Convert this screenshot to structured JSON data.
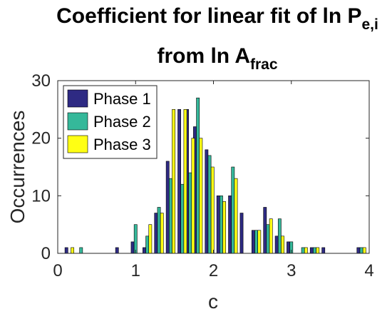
{
  "chart_data": {
    "type": "bar",
    "title_line1": "Coefficient for linear fit of ln P",
    "title_line1_sub": "e,i",
    "title_line2": "from ln A",
    "title_line2_sub": "frac",
    "xlabel": "c",
    "ylabel": "Occurrences",
    "xlim": [
      0,
      4
    ],
    "ylim": [
      0,
      30
    ],
    "xticks": [
      0,
      1,
      2,
      3,
      4
    ],
    "yticks": [
      0,
      10,
      20,
      30
    ],
    "grid": false,
    "legend_position": "top-left",
    "x": [
      0.15,
      0.3,
      0.8,
      1.0,
      1.15,
      1.3,
      1.45,
      1.6,
      1.7,
      1.8,
      1.95,
      2.1,
      2.25,
      2.4,
      2.55,
      2.7,
      2.85,
      3.0,
      3.15,
      3.3,
      3.45,
      3.9
    ],
    "series": [
      {
        "name": "Phase 1",
        "color": "#2e2a83",
        "values": [
          1,
          0,
          1,
          2,
          1,
          7,
          16,
          25,
          25,
          22,
          18,
          10,
          10,
          7,
          4,
          8,
          3,
          2,
          0,
          1,
          1,
          1
        ]
      },
      {
        "name": "Phase 2",
        "color": "#35b89a",
        "values": [
          0,
          1,
          0,
          5,
          3,
          8,
          13,
          12,
          14,
          27,
          17,
          10,
          15,
          0,
          4,
          5,
          6,
          2,
          1,
          1,
          0,
          1
        ]
      },
      {
        "name": "Phase 3",
        "color": "#ffff14",
        "values": [
          1,
          0,
          0,
          0,
          5,
          7,
          25,
          25,
          20,
          20,
          15,
          9,
          13,
          0,
          4,
          6,
          3,
          0,
          1,
          1,
          0,
          1
        ]
      }
    ]
  }
}
